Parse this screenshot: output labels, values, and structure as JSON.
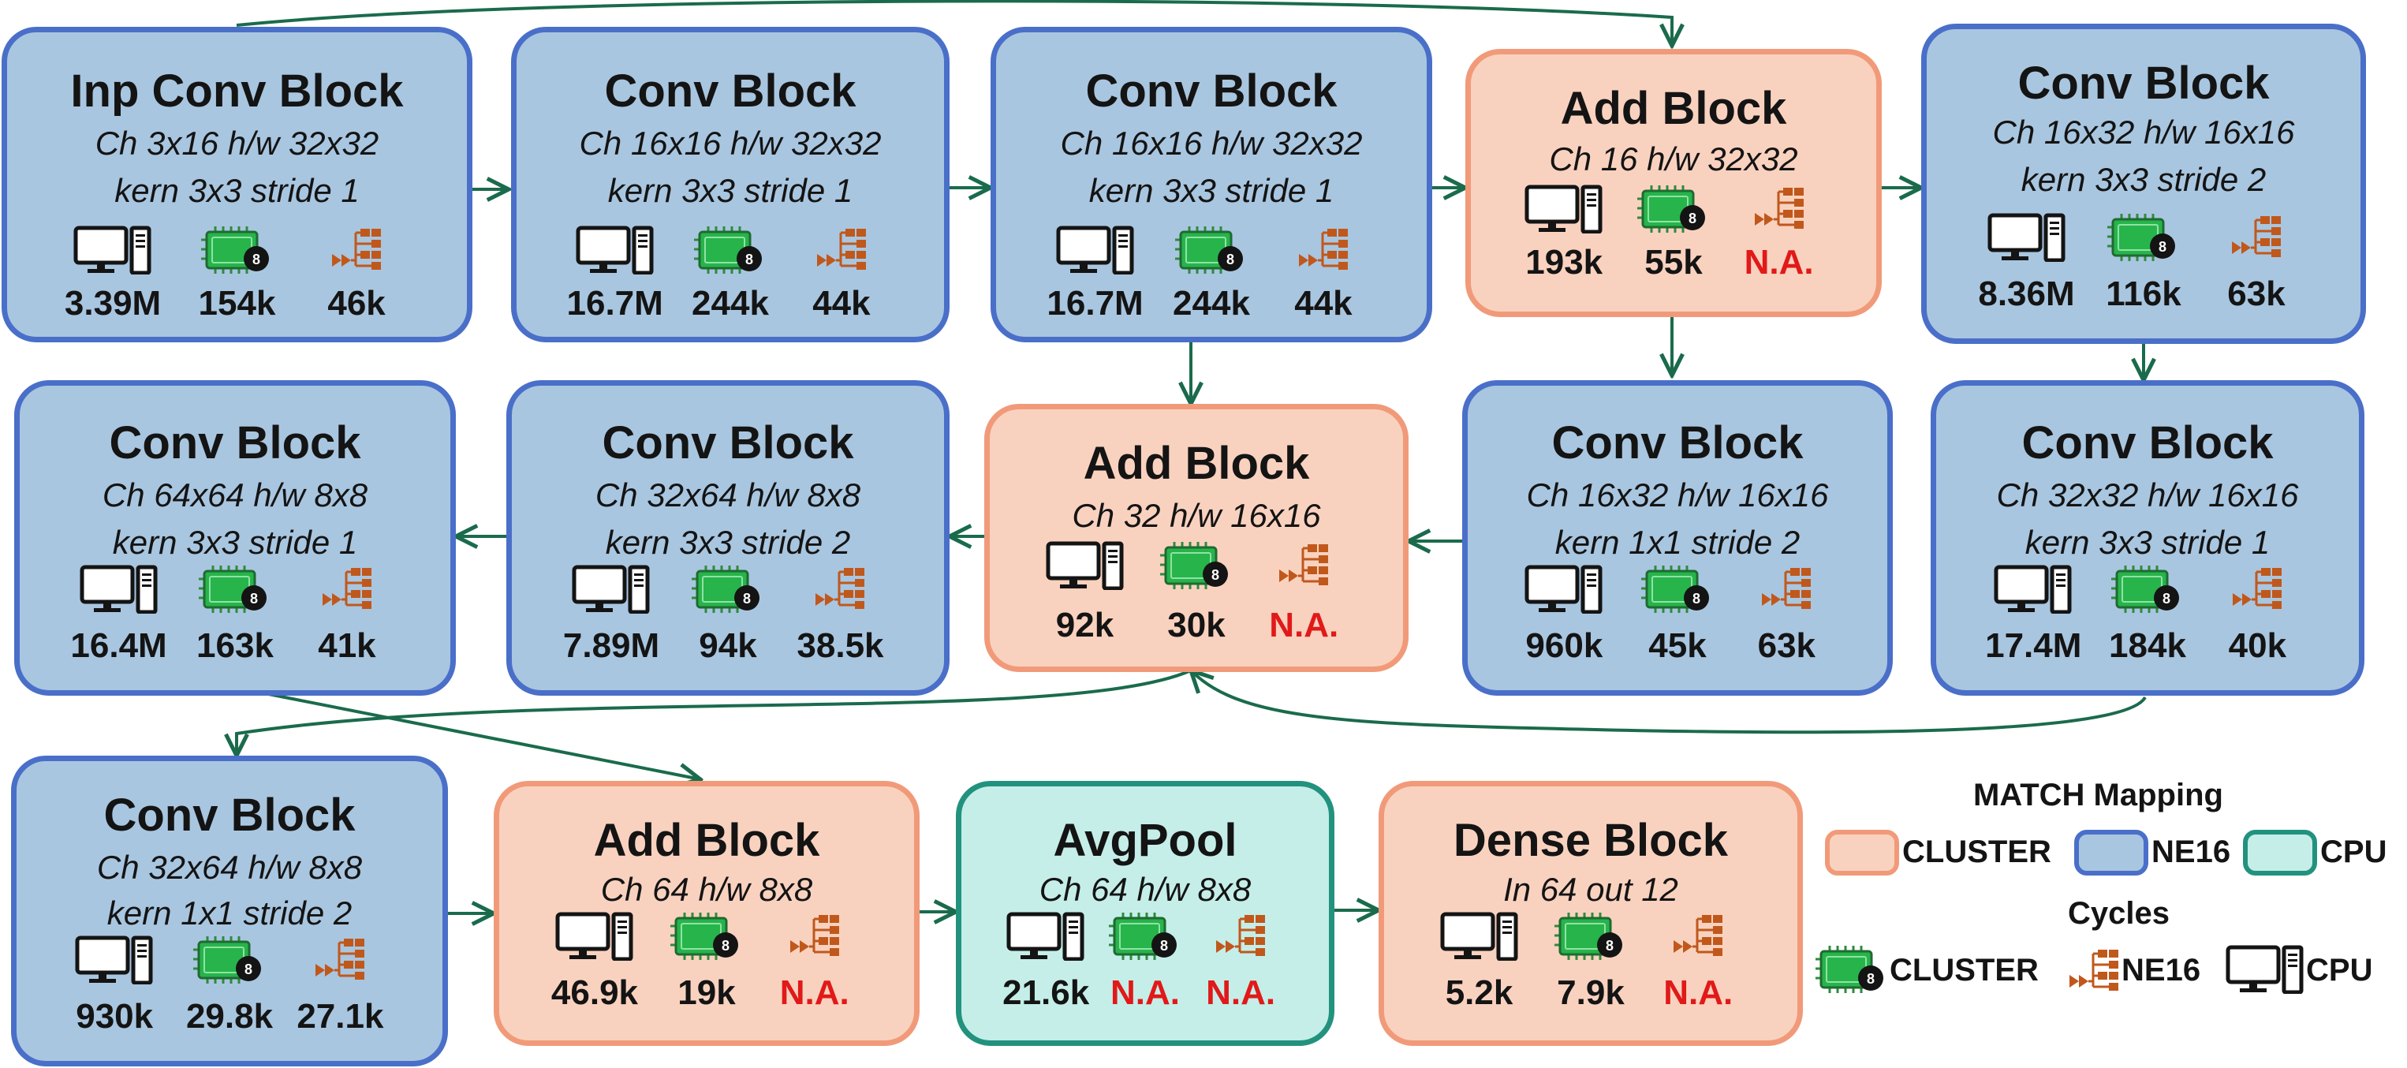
{
  "legend": {
    "mapping_title": "MATCH Mapping",
    "cycles_title": "Cycles",
    "mapping_items": [
      {
        "label": "CLUSTER",
        "color": "#f9d2bf",
        "border": "#f19a79"
      },
      {
        "label": "NE16",
        "color": "#a9c6e0",
        "border": "#4a6fc9"
      },
      {
        "label": "CPU",
        "color": "#c5eee8",
        "border": "#22927e"
      }
    ],
    "cycle_items": [
      {
        "label": "CLUSTER",
        "icon": "chip-icon"
      },
      {
        "label": "NE16",
        "icon": "accelerator-icon"
      },
      {
        "label": "CPU",
        "icon": "computer-icon"
      }
    ]
  },
  "colors": {
    "ne16_fill": "#a9c6e0",
    "ne16_border": "#4a6fc9",
    "cluster_fill": "#f9d2bf",
    "cluster_border": "#f19a79",
    "cpu_fill": "#c5eee8",
    "cpu_border": "#22927e",
    "arrow": "#1a6b4c",
    "na_text": "#e11919"
  },
  "blocks": [
    {
      "id": "b1",
      "title": "Inp Conv Block",
      "lines": [
        "Ch 3x16 h/w 32x32",
        "kern 3x3 stride 1"
      ],
      "cycles": {
        "cpu": "3.39M",
        "cluster": "154k",
        "ne16": "46k"
      },
      "mapping": "NE16"
    },
    {
      "id": "b2",
      "title": "Conv Block",
      "lines": [
        "Ch 16x16 h/w 32x32",
        "kern 3x3 stride 1"
      ],
      "cycles": {
        "cpu": "16.7M",
        "cluster": "244k",
        "ne16": "44k"
      },
      "mapping": "NE16"
    },
    {
      "id": "b3",
      "title": "Conv Block",
      "lines": [
        "Ch 16x16 h/w 32x32",
        "kern 3x3 stride 1"
      ],
      "cycles": {
        "cpu": "16.7M",
        "cluster": "244k",
        "ne16": "44k"
      },
      "mapping": "NE16"
    },
    {
      "id": "b4",
      "title": "Add Block",
      "lines": [
        "Ch 16 h/w 32x32"
      ],
      "cycles": {
        "cpu": "193k",
        "cluster": "55k",
        "ne16": "N.A."
      },
      "mapping": "CLUSTER"
    },
    {
      "id": "b5",
      "title": "Conv Block",
      "lines": [
        "Ch 16x32 h/w 16x16",
        "kern 3x3 stride 2"
      ],
      "cycles": {
        "cpu": "8.36M",
        "cluster": "116k",
        "ne16": "63k"
      },
      "mapping": "NE16"
    },
    {
      "id": "b6",
      "title": "Conv Block",
      "lines": [
        "Ch 64x64 h/w 8x8",
        "kern 3x3 stride 1"
      ],
      "cycles": {
        "cpu": "16.4M",
        "cluster": "163k",
        "ne16": "41k"
      },
      "mapping": "NE16"
    },
    {
      "id": "b7",
      "title": "Conv Block",
      "lines": [
        "Ch 32x64 h/w 8x8",
        "kern 3x3 stride 2"
      ],
      "cycles": {
        "cpu": "7.89M",
        "cluster": "94k",
        "ne16": "38.5k"
      },
      "mapping": "NE16"
    },
    {
      "id": "b8",
      "title": "Add Block",
      "lines": [
        "Ch 32 h/w 16x16"
      ],
      "cycles": {
        "cpu": "92k",
        "cluster": "30k",
        "ne16": "N.A."
      },
      "mapping": "CLUSTER"
    },
    {
      "id": "b9",
      "title": "Conv Block",
      "lines": [
        "Ch 16x32 h/w 16x16",
        "kern 1x1 stride 2"
      ],
      "cycles": {
        "cpu": "960k",
        "cluster": "45k",
        "ne16": "63k"
      },
      "mapping": "NE16"
    },
    {
      "id": "b10",
      "title": "Conv Block",
      "lines": [
        "Ch 32x32 h/w 16x16",
        "kern 3x3 stride 1"
      ],
      "cycles": {
        "cpu": "17.4M",
        "cluster": "184k",
        "ne16": "40k"
      },
      "mapping": "NE16"
    },
    {
      "id": "b11",
      "title": "Conv Block",
      "lines": [
        "Ch 32x64 h/w 8x8",
        "kern 1x1 stride 2"
      ],
      "cycles": {
        "cpu": "930k",
        "cluster": "29.8k",
        "ne16": "27.1k"
      },
      "mapping": "NE16"
    },
    {
      "id": "b12",
      "title": "Add Block",
      "lines": [
        "Ch 64 h/w 8x8"
      ],
      "cycles": {
        "cpu": "46.9k",
        "cluster": "19k",
        "ne16": "N.A."
      },
      "mapping": "CLUSTER"
    },
    {
      "id": "b13",
      "title": "AvgPool",
      "lines": [
        "Ch 64 h/w 8x8"
      ],
      "cycles": {
        "cpu": "21.6k",
        "cluster": "N.A.",
        "ne16": "N.A."
      },
      "mapping": "CPU"
    },
    {
      "id": "b14",
      "title": "Dense Block",
      "lines": [
        "In 64 out 12"
      ],
      "cycles": {
        "cpu": "5.2k",
        "cluster": "7.9k",
        "ne16": "N.A."
      },
      "mapping": "CLUSTER"
    }
  ]
}
